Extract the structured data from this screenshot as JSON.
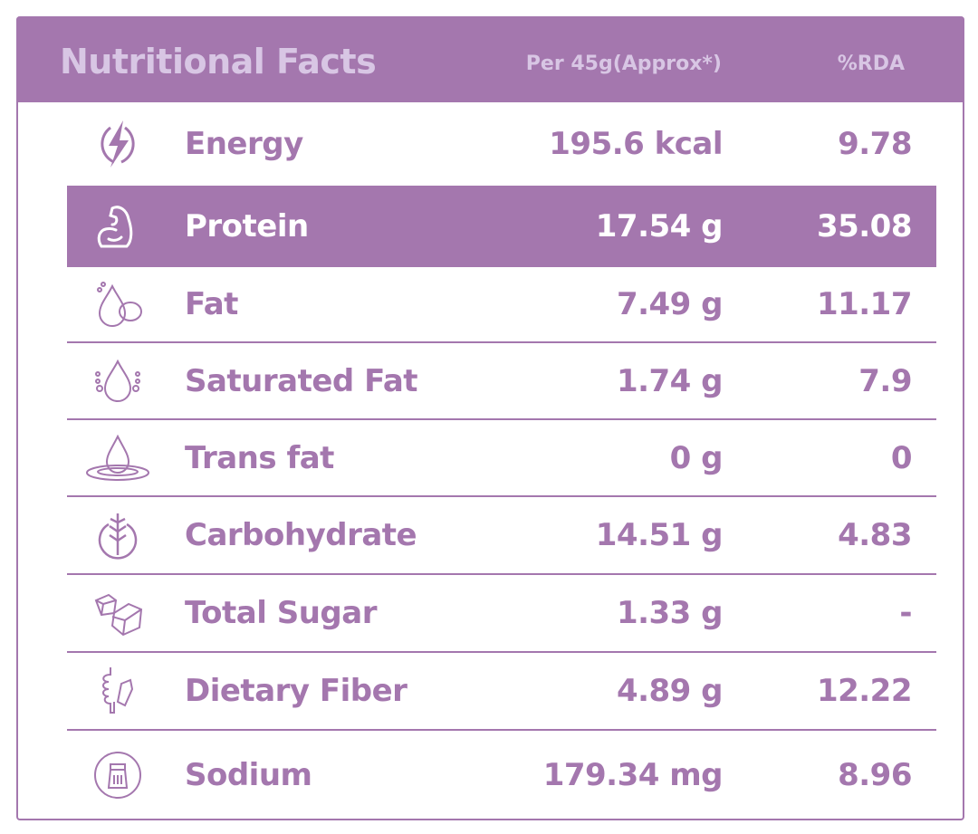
{
  "header": {
    "title": "Nutritional Facts",
    "per_label": "Per 45g(Approx*)",
    "rda_label": "%RDA"
  },
  "colors": {
    "accent": "#a477ae",
    "header_text": "#d8c6e4"
  },
  "rows": [
    {
      "icon": "lightning-icon",
      "label": "Energy",
      "value": "195.6 kcal",
      "rda": "9.78"
    },
    {
      "icon": "flexed-arm-icon",
      "label": "Protein",
      "value": "17.54 g",
      "rda": "35.08",
      "highlighted": true
    },
    {
      "icon": "oil-drop-nut-icon",
      "label": "Fat",
      "value": "7.49 g",
      "rda": "11.17"
    },
    {
      "icon": "drop-bubbles-icon",
      "label": "Saturated Fat",
      "value": "1.74 g",
      "rda": "7.9"
    },
    {
      "icon": "drop-ripple-icon",
      "label": "Trans fat",
      "value": "0 g",
      "rda": "0"
    },
    {
      "icon": "wheat-icon",
      "label": "Carbohydrate",
      "value": "14.51 g",
      "rda": "4.83"
    },
    {
      "icon": "sugar-cubes-icon",
      "label": "Total Sugar",
      "value": "1.33 g",
      "rda": "-"
    },
    {
      "icon": "intestine-icon",
      "label": "Dietary Fiber",
      "value": "4.89 g",
      "rda": "12.22"
    },
    {
      "icon": "salt-shaker-icon",
      "label": "Sodium",
      "value": "179.34 mg",
      "rda": "8.96"
    }
  ]
}
